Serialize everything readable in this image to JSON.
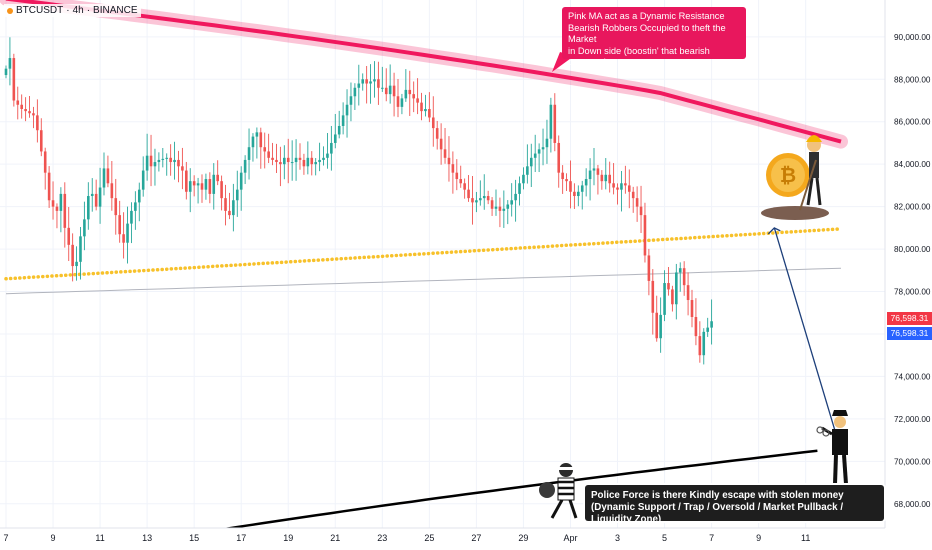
{
  "header": {
    "symbol": "BTCUSDT",
    "separator": "·",
    "timeframe": "4h",
    "exchange": "BINANCE"
  },
  "annotations": {
    "top_callout": [
      "Pink MA act as a Dynamic Resistance",
      "Bearish Robbers Occupied to theft the Market",
      "in Down side (boostin' that bearish pressure)"
    ],
    "bottom_callout": [
      "Police Force is there Kindly escape with stolen money",
      "(Dynamic Support / Trap / Oversold / Market Pullback / Liquidity Zone)"
    ]
  },
  "price_tags": {
    "last_price": "76,598.31",
    "mark_price": "76,598.31"
  },
  "colors": {
    "bull": "#26a69a",
    "bear": "#ef5350",
    "pink_ma": "#f0185e",
    "yellow_ma": "#f7c12a",
    "black_ma": "#000000",
    "arrow": "#1d3f7a",
    "callout_top_bg": "#e8175d",
    "callout_bottom_bg": "#1e1e1e"
  },
  "icons": [
    "bitcoin-miner-icon",
    "robber-icon",
    "police-officer-icon"
  ],
  "chart_data": {
    "type": "candlestick",
    "timeframe": "4h",
    "ylim": [
      67000,
      91500
    ],
    "y_ticks": [
      68000,
      70000,
      72000,
      74000,
      76000,
      78000,
      80000,
      82000,
      84000,
      86000,
      88000,
      90000
    ],
    "y_tick_labels": [
      "68,000.00",
      "70,000.00",
      "72,000.00",
      "74,000.00",
      "76,000.00",
      "78,000.00",
      "80,000.00",
      "82,000.00",
      "84,000.00",
      "86,000.00",
      "88,000.00",
      "90,000.00"
    ],
    "x_tick_labels": [
      "7",
      "9",
      "11",
      "13",
      "15",
      "17",
      "19",
      "21",
      "23",
      "25",
      "27",
      "29",
      "Apr",
      "3",
      "5",
      "7",
      "9",
      "11"
    ],
    "x_tick_bars": [
      0,
      12,
      24,
      36,
      48,
      60,
      72,
      84,
      96,
      108,
      120,
      132,
      144,
      156,
      168,
      180,
      192,
      204
    ],
    "candles_close": [
      88500,
      89000,
      87000,
      86800,
      86600,
      86500,
      86400,
      86300,
      85600,
      84600,
      83600,
      82300,
      82000,
      81800,
      82600,
      81000,
      80200,
      79200,
      79400,
      80600,
      81400,
      82500,
      82600,
      82000,
      82900,
      83800,
      83100,
      82400,
      81600,
      80700,
      80300,
      81200,
      81800,
      82200,
      82800,
      83700,
      84400,
      83900,
      84100,
      84200,
      84250,
      84300,
      84100,
      84200,
      83900,
      83700,
      82700,
      83200,
      83000,
      83100,
      82800,
      83300,
      82600,
      83500,
      83200,
      82400,
      81800,
      81600,
      82300,
      82800,
      83600,
      84200,
      84800,
      85300,
      85500,
      84800,
      84600,
      84300,
      84200,
      84100,
      84000,
      84300,
      84100,
      84100,
      84300,
      84200,
      83900,
      84300,
      84000,
      84100,
      84200,
      84300,
      84500,
      85000,
      85400,
      85800,
      86300,
      86800,
      87200,
      87600,
      87800,
      88000,
      87800,
      87900,
      88000,
      87600,
      87600,
      87300,
      87700,
      87200,
      86700,
      87100,
      87500,
      87300,
      87100,
      86900,
      86500,
      86600,
      86200,
      85700,
      85200,
      84700,
      84300,
      84000,
      83600,
      83300,
      83100,
      82800,
      82400,
      82200,
      82300,
      82400,
      82500,
      82300,
      81900,
      82000,
      81800,
      81900,
      82100,
      82300,
      82600,
      83100,
      83500,
      83900,
      84300,
      84500,
      84700,
      84800,
      85200,
      86800,
      85000,
      83600,
      83300,
      83200,
      82700,
      82500,
      82700,
      83000,
      83300,
      83700,
      83800,
      83500,
      83200,
      83500,
      83100,
      82900,
      82800,
      83100,
      83000,
      82700,
      82400,
      82000,
      81600,
      79700,
      78500,
      77000,
      75800,
      76900,
      78400,
      78100,
      77400,
      78900,
      79100,
      78300,
      77600,
      76800,
      75900,
      75000,
      76100,
      76300,
      76600
    ],
    "series": [
      {
        "name": "Pink MA",
        "start": [
          0,
          91800
        ],
        "end": [
          213,
          85900
        ]
      },
      {
        "name": "Yellow MA",
        "start": [
          0,
          78600
        ],
        "end": [
          213,
          80950
        ]
      },
      {
        "name": "Gray MA",
        "start": [
          0,
          77900
        ],
        "end": [
          213,
          79100
        ]
      },
      {
        "name": "Black MA",
        "start": [
          0,
          65200
        ],
        "end": [
          207,
          70500
        ]
      }
    ],
    "arrow": {
      "from": [
        196,
        81000
      ],
      "to": [
        213,
        70500
      ]
    },
    "last_price": 76598.31
  }
}
